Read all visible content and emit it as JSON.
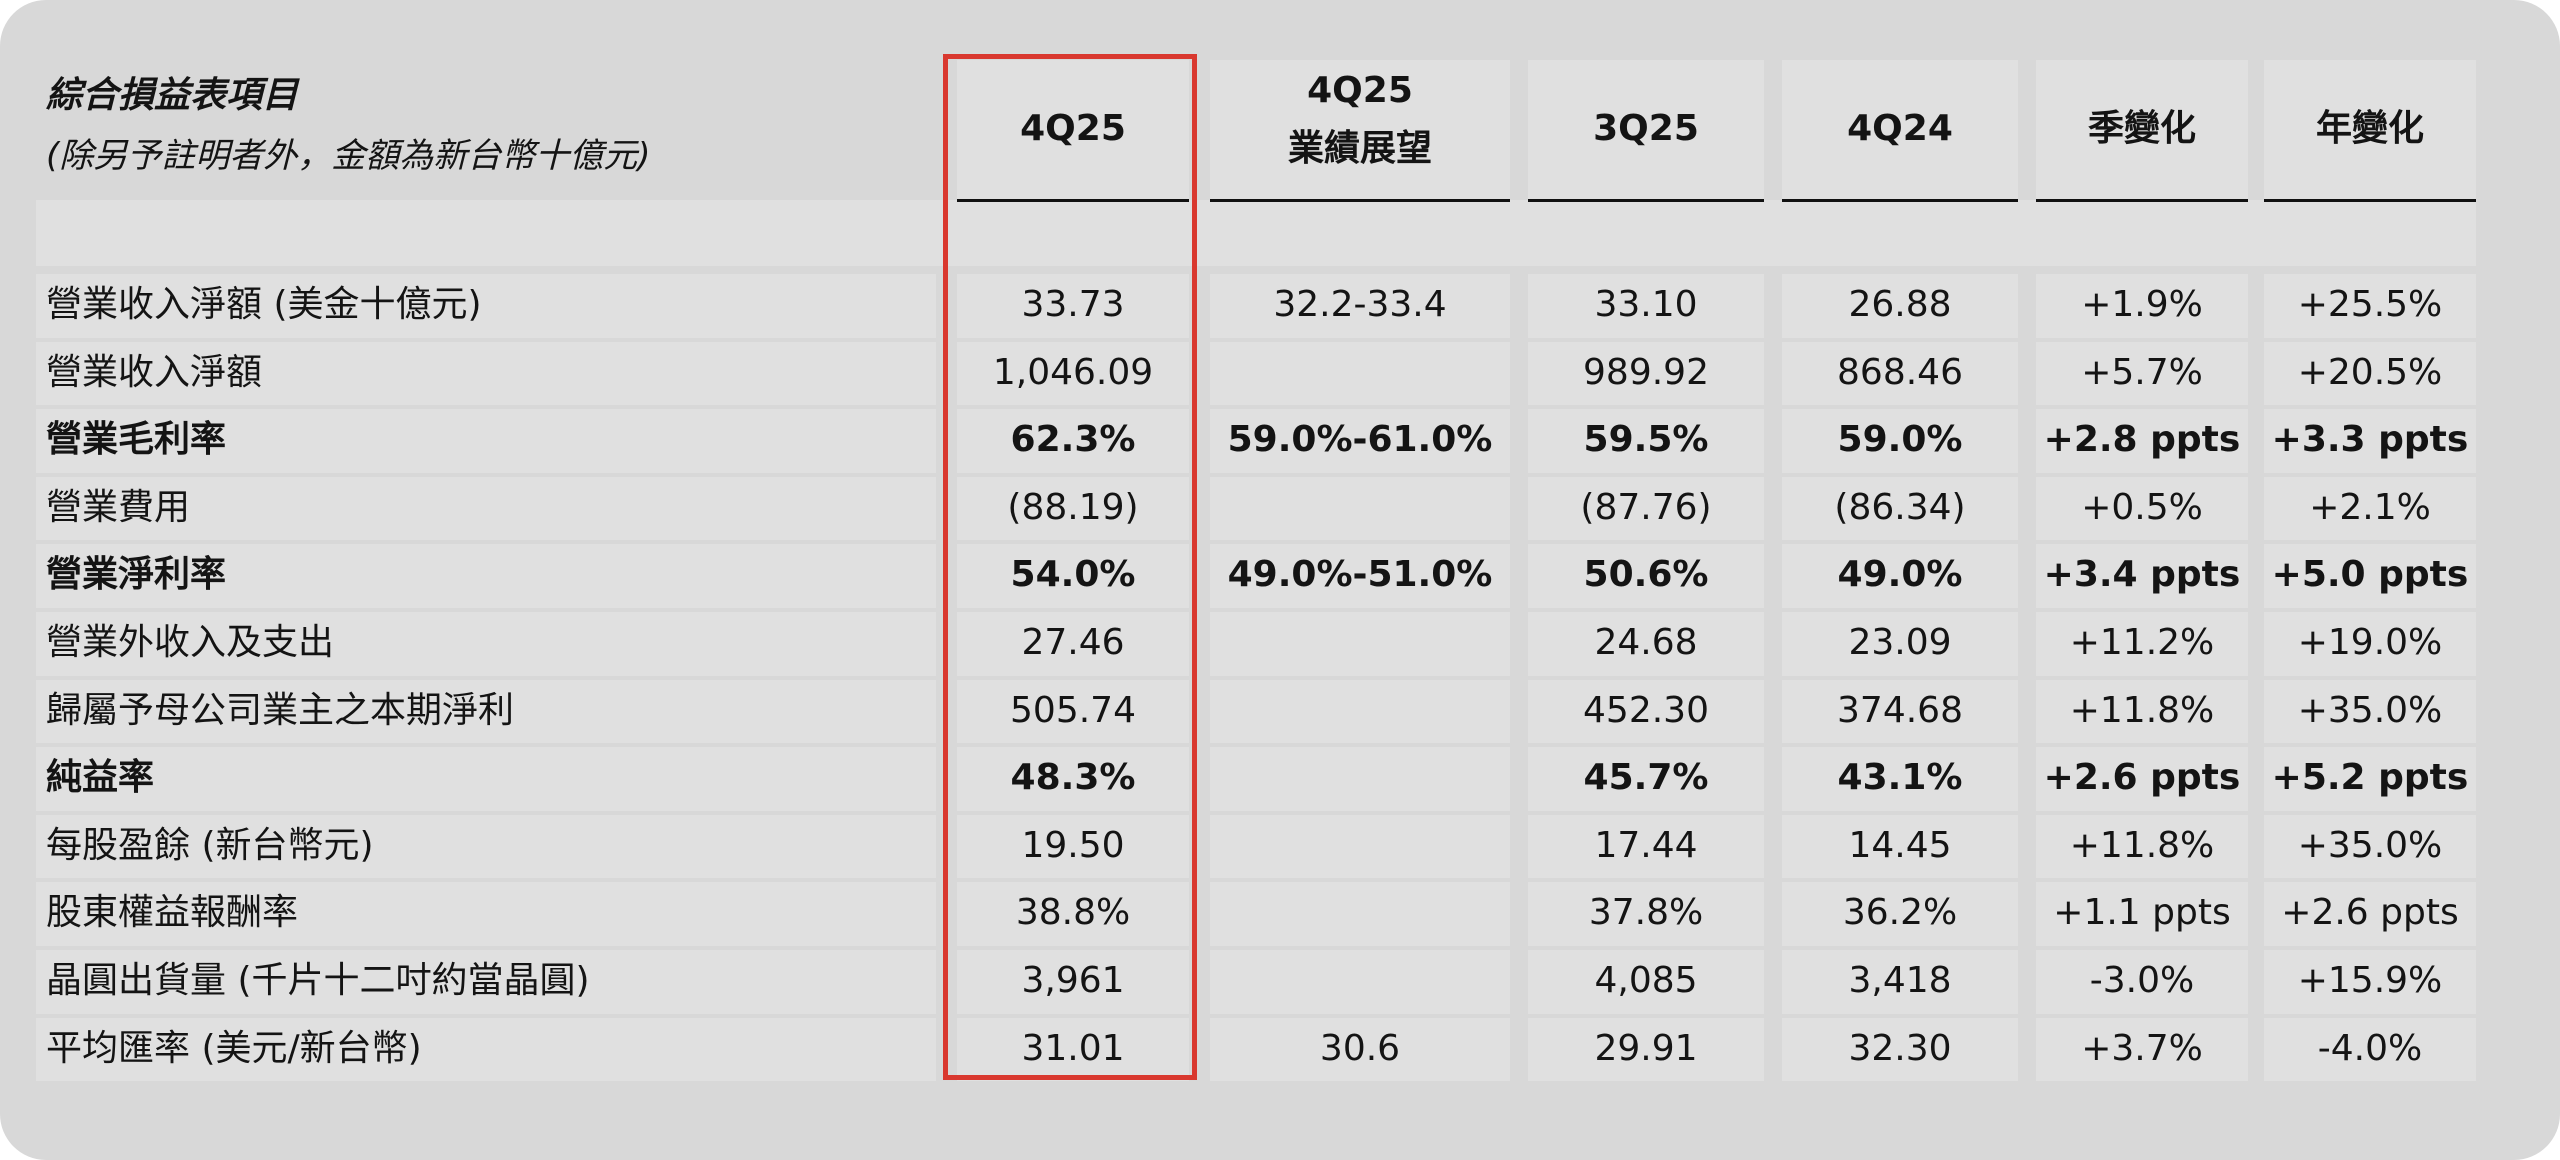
{
  "header": {
    "title": "綜合損益表項目",
    "subtitle": "(除另予註明者外，金額為新台幣十億元)"
  },
  "columns": [
    {
      "line1": "4Q25",
      "line2": ""
    },
    {
      "line1": "4Q25",
      "line2": "業績展望"
    },
    {
      "line1": "3Q25",
      "line2": ""
    },
    {
      "line1": "4Q24",
      "line2": ""
    },
    {
      "line1": "季變化",
      "line2": ""
    },
    {
      "line1": "年變化",
      "line2": ""
    }
  ],
  "highlighted_column": "4Q25",
  "colors": {
    "panel_background": "#d8d8d8",
    "cell_background": "#e0e0e0",
    "highlight_border": "#d9382f",
    "text": "#141414"
  },
  "rows": [
    {
      "label": "營業收入淨額 (美金十億元)",
      "bold": false,
      "values": [
        "33.73",
        "32.2-33.4",
        "33.10",
        "26.88",
        "+1.9%",
        "+25.5%"
      ]
    },
    {
      "label": "營業收入淨額",
      "bold": false,
      "values": [
        "1,046.09",
        "",
        "989.92",
        "868.46",
        "+5.7%",
        "+20.5%"
      ]
    },
    {
      "label": "營業毛利率",
      "bold": true,
      "values": [
        "62.3%",
        "59.0%-61.0%",
        "59.5%",
        "59.0%",
        "+2.8 ppts",
        "+3.3 ppts"
      ]
    },
    {
      "label": "營業費用",
      "bold": false,
      "values": [
        "(88.19)",
        "",
        "(87.76)",
        "(86.34)",
        "+0.5%",
        "+2.1%"
      ]
    },
    {
      "label": "營業淨利率",
      "bold": true,
      "values": [
        "54.0%",
        "49.0%-51.0%",
        "50.6%",
        "49.0%",
        "+3.4 ppts",
        "+5.0 ppts"
      ]
    },
    {
      "label": "營業外收入及支出",
      "bold": false,
      "values": [
        "27.46",
        "",
        "24.68",
        "23.09",
        "+11.2%",
        "+19.0%"
      ]
    },
    {
      "label": "歸屬予母公司業主之本期淨利",
      "bold": false,
      "values": [
        "505.74",
        "",
        "452.30",
        "374.68",
        "+11.8%",
        "+35.0%"
      ]
    },
    {
      "label": "純益率",
      "bold": true,
      "values": [
        "48.3%",
        "",
        "45.7%",
        "43.1%",
        "+2.6 ppts",
        "+5.2 ppts"
      ]
    },
    {
      "label": "每股盈餘 (新台幣元)",
      "bold": false,
      "values": [
        "19.50",
        "",
        "17.44",
        "14.45",
        "+11.8%",
        "+35.0%"
      ]
    },
    {
      "label": "股東權益報酬率",
      "bold": false,
      "values": [
        "38.8%",
        "",
        "37.8%",
        "36.2%",
        "+1.1 ppts",
        "+2.6 ppts"
      ]
    },
    {
      "label": "晶圓出貨量 (千片十二吋約當晶圓)",
      "bold": false,
      "values": [
        "3,961",
        "",
        "4,085",
        "3,418",
        "-3.0%",
        "+15.9%"
      ]
    },
    {
      "label": "平均匯率 (美元/新台幣)",
      "bold": false,
      "values": [
        "31.01",
        "30.6",
        "29.91",
        "32.30",
        "+3.7%",
        "-4.0%"
      ]
    }
  ]
}
